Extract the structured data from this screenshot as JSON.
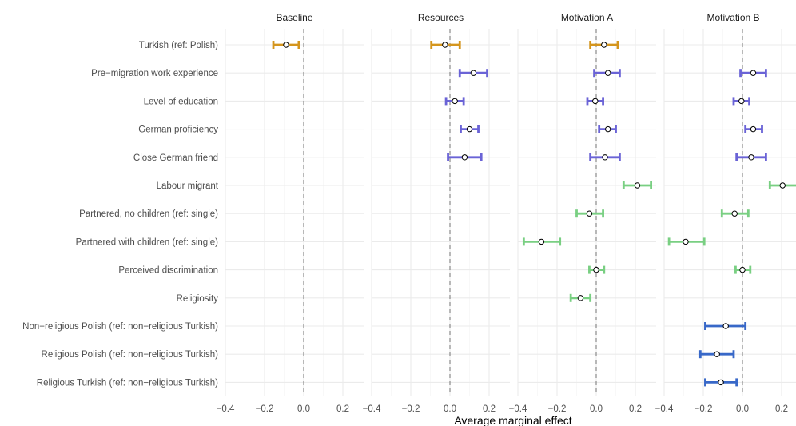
{
  "chart_data": {
    "type": "coefficient-plot",
    "xlabel": "Average marginal effect",
    "xlim": [
      -0.4,
      0.28
    ],
    "x_ticks": [
      -0.4,
      -0.2,
      0.0,
      0.2
    ],
    "x_tick_labels": [
      "−0.4",
      "−0.2",
      "0.0",
      "0.2"
    ],
    "reference_line": 0,
    "grid": true,
    "colors": {
      "orange": "#d4951d",
      "purple": "#6a63d6",
      "green": "#79cf82",
      "blue": "#3868c8"
    },
    "rows": [
      "Turkish (ref: Polish)",
      "Pre−migration work experience",
      "Level of education",
      "German proficiency",
      "Close German friend",
      "Labour migrant",
      "Partnered, no children (ref: single)",
      "Partnered with children (ref: single)",
      "Perceived discrimination",
      "Religiosity",
      "Non−religious Polish (ref: non−religious Turkish)",
      "Religious Polish (ref: non−religious Turkish)",
      "Religious Turkish (ref: non−religious Turkish)"
    ],
    "panels": [
      {
        "title": "Baseline",
        "estimates": [
          {
            "row": 0,
            "est": -0.09,
            "lo": -0.155,
            "hi": -0.025,
            "color": "orange"
          }
        ]
      },
      {
        "title": "Resources",
        "estimates": [
          {
            "row": 0,
            "est": -0.025,
            "lo": -0.095,
            "hi": 0.05,
            "color": "orange"
          },
          {
            "row": 1,
            "est": 0.12,
            "lo": 0.05,
            "hi": 0.19,
            "color": "purple"
          },
          {
            "row": 2,
            "est": 0.025,
            "lo": -0.02,
            "hi": 0.07,
            "color": "purple"
          },
          {
            "row": 3,
            "est": 0.1,
            "lo": 0.055,
            "hi": 0.145,
            "color": "purple"
          },
          {
            "row": 4,
            "est": 0.075,
            "lo": -0.01,
            "hi": 0.16,
            "color": "purple"
          }
        ]
      },
      {
        "title": "Motivation A",
        "estimates": [
          {
            "row": 0,
            "est": 0.04,
            "lo": -0.03,
            "hi": 0.11,
            "color": "orange"
          },
          {
            "row": 1,
            "est": 0.06,
            "lo": -0.01,
            "hi": 0.12,
            "color": "purple"
          },
          {
            "row": 2,
            "est": -0.005,
            "lo": -0.045,
            "hi": 0.035,
            "color": "purple"
          },
          {
            "row": 3,
            "est": 0.06,
            "lo": 0.015,
            "hi": 0.1,
            "color": "purple"
          },
          {
            "row": 4,
            "est": 0.045,
            "lo": -0.03,
            "hi": 0.12,
            "color": "purple"
          },
          {
            "row": 5,
            "est": 0.21,
            "lo": 0.14,
            "hi": 0.28,
            "color": "green"
          },
          {
            "row": 6,
            "est": -0.035,
            "lo": -0.1,
            "hi": 0.035,
            "color": "green"
          },
          {
            "row": 7,
            "est": -0.28,
            "lo": -0.37,
            "hi": -0.185,
            "color": "green"
          },
          {
            "row": 8,
            "est": 0.0,
            "lo": -0.035,
            "hi": 0.04,
            "color": "green"
          },
          {
            "row": 9,
            "est": -0.08,
            "lo": -0.13,
            "hi": -0.03,
            "color": "green"
          }
        ]
      },
      {
        "title": "Motivation B",
        "estimates": [
          {
            "row": 1,
            "est": 0.055,
            "lo": -0.01,
            "hi": 0.12,
            "color": "purple"
          },
          {
            "row": 2,
            "est": -0.005,
            "lo": -0.045,
            "hi": 0.035,
            "color": "purple"
          },
          {
            "row": 3,
            "est": 0.055,
            "lo": 0.015,
            "hi": 0.1,
            "color": "purple"
          },
          {
            "row": 4,
            "est": 0.045,
            "lo": -0.03,
            "hi": 0.12,
            "color": "purple"
          },
          {
            "row": 5,
            "est": 0.205,
            "lo": 0.14,
            "hi": 0.28,
            "color": "green"
          },
          {
            "row": 6,
            "est": -0.04,
            "lo": -0.105,
            "hi": 0.03,
            "color": "green"
          },
          {
            "row": 7,
            "est": -0.29,
            "lo": -0.375,
            "hi": -0.195,
            "color": "green"
          },
          {
            "row": 8,
            "est": 0.0,
            "lo": -0.035,
            "hi": 0.04,
            "color": "green"
          },
          {
            "row": 10,
            "est": -0.085,
            "lo": -0.19,
            "hi": 0.015,
            "color": "blue"
          },
          {
            "row": 11,
            "est": -0.13,
            "lo": -0.215,
            "hi": -0.045,
            "color": "blue"
          },
          {
            "row": 12,
            "est": -0.11,
            "lo": -0.19,
            "hi": -0.03,
            "color": "blue"
          }
        ]
      }
    ]
  }
}
